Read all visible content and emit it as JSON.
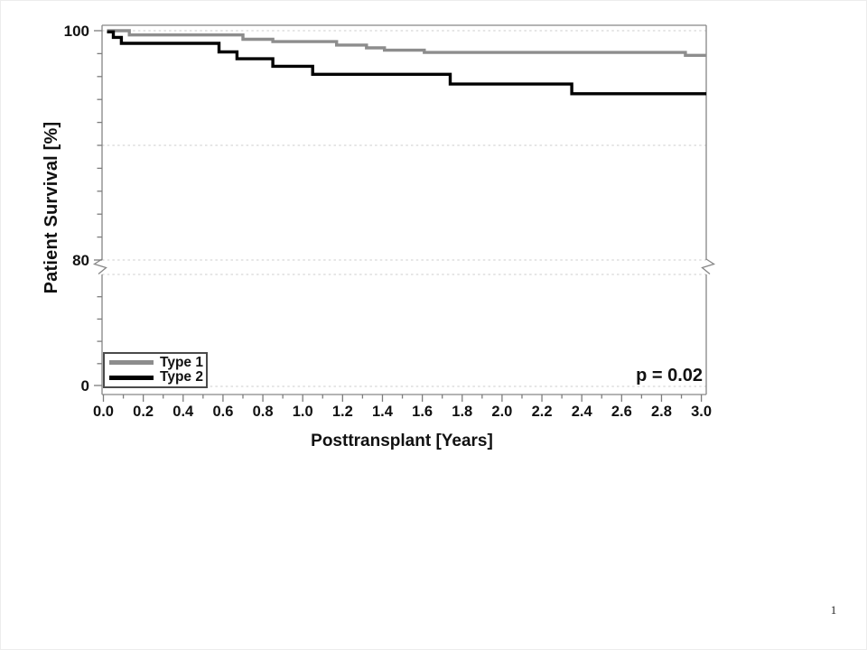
{
  "page": {
    "number": "1"
  },
  "chart_data": {
    "type": "line",
    "subtype": "kaplan-meier-step-survival",
    "title": "",
    "xlabel": "Posttransplant [Years]",
    "ylabel": "Patient Survival [%]",
    "annotation": "p = 0.02",
    "x_range": [
      0,
      3.03
    ],
    "x_major_tick_step": 0.2,
    "x_minor_tick_step": 0.1,
    "x_tick_labels": [
      "0.0",
      "0.2",
      "0.4",
      "0.6",
      "0.8",
      "1.0",
      "1.2",
      "1.4",
      "1.6",
      "1.8",
      "2.0",
      "2.2",
      "2.4",
      "2.6",
      "2.8",
      "3.0"
    ],
    "y_axis_break": {
      "upper_region": [
        80,
        100
      ],
      "lower_label": 0,
      "broken_between": [
        0,
        80
      ]
    },
    "y_tick_labels": [
      "100",
      "80",
      "0"
    ],
    "y_minor_tick_step_pct": 2,
    "y_gridlines_pct": [
      100,
      90,
      80,
      0
    ],
    "grid": "dashed-horizontal",
    "legend_position": "bottom-left-inside",
    "legend": {
      "entries": [
        {
          "label": "Type 1",
          "color": "#8d8d8d"
        },
        {
          "label": "Type 2",
          "color": "#000000"
        }
      ]
    },
    "series": [
      {
        "name": "Type 1",
        "color": "#8d8d8d",
        "steps_time_survivalpct": [
          [
            0.018,
            100.0
          ],
          [
            0.13,
            99.63
          ],
          [
            0.7,
            99.25
          ],
          [
            0.85,
            99.05
          ],
          [
            1.17,
            98.75
          ],
          [
            1.32,
            98.5
          ],
          [
            1.41,
            98.3
          ],
          [
            1.61,
            98.1
          ],
          [
            2.92,
            97.85
          ]
        ]
      },
      {
        "name": "Type 2",
        "color": "#000000",
        "steps_time_survivalpct": [
          [
            0.018,
            99.9
          ],
          [
            0.05,
            99.42
          ],
          [
            0.09,
            98.9
          ],
          [
            0.58,
            98.15
          ],
          [
            0.67,
            97.55
          ],
          [
            0.85,
            96.9
          ],
          [
            1.05,
            96.2
          ],
          [
            1.74,
            95.35
          ],
          [
            2.35,
            94.5
          ]
        ]
      }
    ],
    "colors": {
      "frame": "#868686",
      "ticks": "#7d7d7d",
      "gridline": "#cdcdcd",
      "text": "#111111"
    }
  }
}
